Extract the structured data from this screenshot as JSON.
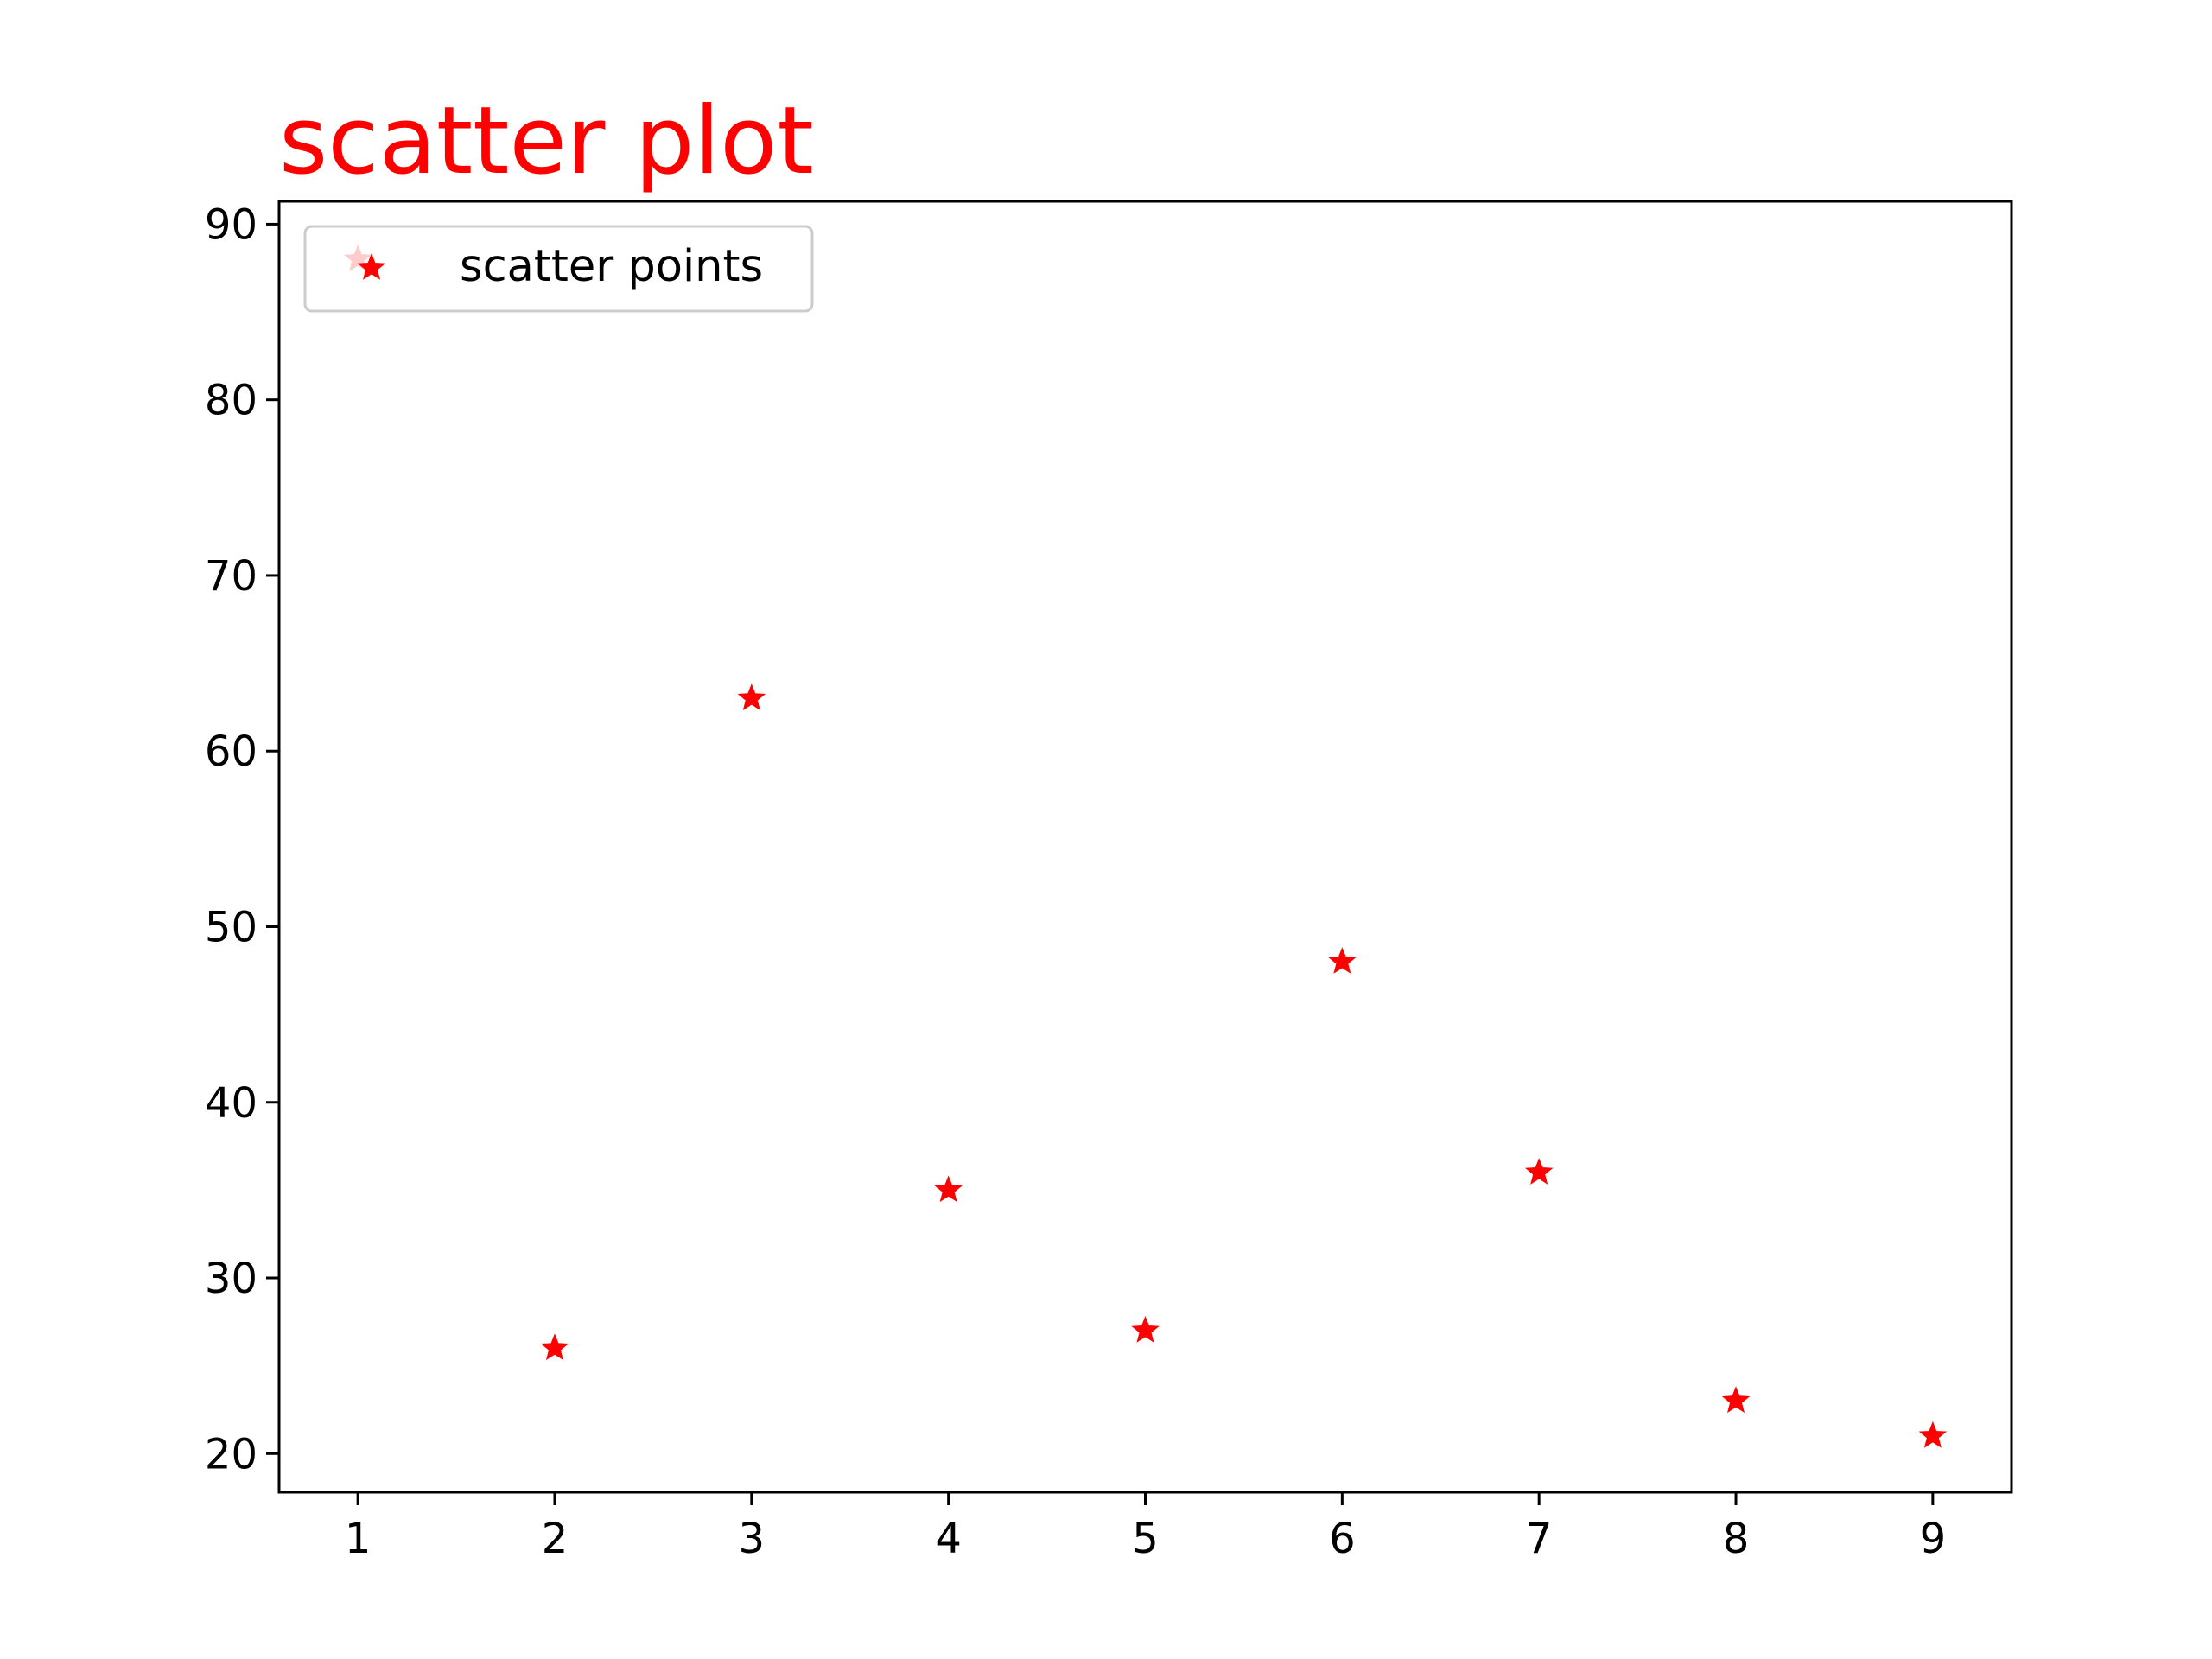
{
  "chart_data": {
    "type": "scatter",
    "title": "scatter plot",
    "xlabel": "",
    "ylabel": "",
    "x": [
      1,
      2,
      3,
      4,
      5,
      6,
      7,
      8,
      9
    ],
    "series": [
      {
        "name": "scatter points",
        "marker": "star",
        "color": "#ff0000",
        "values": [
          88,
          26,
          63,
          35,
          27,
          48,
          36,
          23,
          21
        ]
      }
    ],
    "xlim": [
      0.6,
      9.4
    ],
    "ylim": [
      17.8,
      91.3
    ],
    "xticks": [
      1,
      2,
      3,
      4,
      5,
      6,
      7,
      8,
      9
    ],
    "yticks": [
      20,
      30,
      40,
      50,
      60,
      70,
      80,
      90
    ],
    "grid": false,
    "legend": {
      "placement": "upper-left"
    },
    "title_color": "#ff0000"
  }
}
